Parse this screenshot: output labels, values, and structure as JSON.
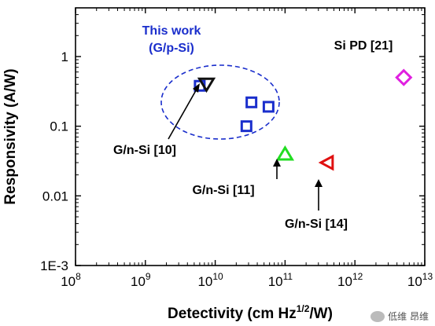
{
  "chart_data": {
    "type": "scatter",
    "title": "",
    "xlabel": "Detectivity (cm Hz",
    "xlabel_sup": "1/2",
    "xlabel_tail": "/W)",
    "ylabel": "Responsivity (A/W)",
    "xscale": "log",
    "yscale": "log",
    "xlim": [
      100000000.0,
      10000000000000.0
    ],
    "ylim": [
      0.001,
      5
    ],
    "x_ticks": [
      {
        "value": 100000000.0,
        "base": "10",
        "exp": "8"
      },
      {
        "value": 1000000000.0,
        "base": "10",
        "exp": "9"
      },
      {
        "value": 10000000000.0,
        "base": "10",
        "exp": "10"
      },
      {
        "value": 100000000000.0,
        "base": "10",
        "exp": "11"
      },
      {
        "value": 1000000000000.0,
        "base": "10",
        "exp": "12"
      },
      {
        "value": 10000000000000.0,
        "base": "10",
        "exp": "13"
      }
    ],
    "y_ticks": [
      {
        "value": 1,
        "label": "1"
      },
      {
        "value": 0.1,
        "label": "0.1"
      },
      {
        "value": 0.01,
        "label": "0.01"
      },
      {
        "value": 0.001,
        "label": "1E-3"
      }
    ],
    "series": [
      {
        "marker": "square",
        "color": "#1a2ecc",
        "points": [
          {
            "x": 6000000000.0,
            "y": 0.38
          },
          {
            "x": 33000000000.0,
            "y": 0.22
          },
          {
            "x": 58000000000.0,
            "y": 0.19
          },
          {
            "x": 28000000000.0,
            "y": 0.1
          }
        ]
      },
      {
        "marker": "triangle-down",
        "color": "#111111",
        "points": [
          {
            "x": 7500000000.0,
            "y": 0.4
          }
        ]
      },
      {
        "marker": "triangle-up",
        "color": "#22dd22",
        "points": [
          {
            "x": 100000000000.0,
            "y": 0.04
          }
        ]
      },
      {
        "marker": "triangle-left",
        "color": "#e01010",
        "points": [
          {
            "x": 400000000000.0,
            "y": 0.03
          }
        ]
      },
      {
        "marker": "diamond",
        "color": "#e020e0",
        "points": [
          {
            "x": 5000000000000.0,
            "y": 0.5
          }
        ]
      }
    ],
    "annotations": {
      "this_work_line1": "This work",
      "this_work_line2": "(G/p-Si)",
      "si_pd": "Si PD [21]",
      "gn10": "G/n-Si [10]",
      "gn11": "G/n-Si [11]",
      "gn14": "G/n-Si [14]"
    },
    "grid": false,
    "legend": "none"
  },
  "watermark": {
    "text": "低维 昂维"
  }
}
